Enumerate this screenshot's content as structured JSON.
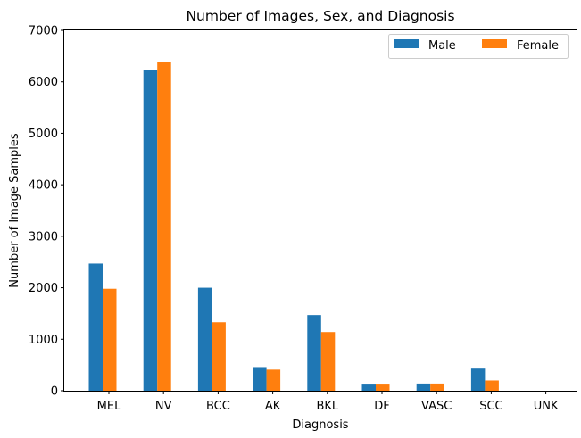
{
  "chart_data": {
    "type": "bar",
    "title": "Number of Images, Sex, and Diagnosis",
    "xlabel": "Diagnosis",
    "ylabel": "Number of Image Samples",
    "categories": [
      "MEL",
      "NV",
      "BCC",
      "AK",
      "BKL",
      "DF",
      "VASC",
      "SCC",
      "UNK"
    ],
    "series": [
      {
        "name": "Male",
        "color": "#1f77b4",
        "values": [
          2470,
          6230,
          2000,
          460,
          1470,
          120,
          140,
          430,
          0
        ]
      },
      {
        "name": "Female",
        "color": "#ff7f0e",
        "values": [
          1980,
          6380,
          1330,
          410,
          1140,
          120,
          140,
          200,
          0
        ]
      }
    ],
    "ylim": [
      0,
      7000
    ],
    "yticks": [
      0,
      1000,
      2000,
      3000,
      4000,
      5000,
      6000,
      7000
    ],
    "grid": false,
    "legend_position": "top-right"
  }
}
